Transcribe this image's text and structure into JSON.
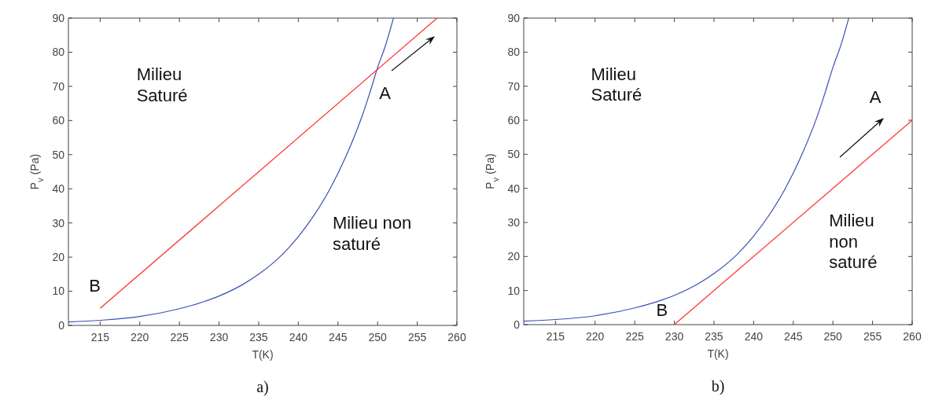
{
  "chart_data": [
    {
      "type": "line",
      "xlabel": "T(K)",
      "ylabel": "P$_{v}$ (Pa)",
      "xlim": [
        211,
        260
      ],
      "ylim": [
        0,
        90
      ],
      "xticks": [
        215,
        220,
        225,
        230,
        235,
        240,
        245,
        250,
        255,
        260
      ],
      "yticks": [
        0,
        10,
        20,
        30,
        40,
        50,
        60,
        70,
        80,
        90
      ],
      "series": [
        {
          "color": "#3b4fb4",
          "x": [
            211,
            215,
            220,
            225,
            228,
            230,
            233,
            235,
            238,
            240,
            242,
            244,
            246,
            248,
            249,
            250,
            251,
            252
          ],
          "values": [
            1.0,
            1.5,
            2.6,
            4.9,
            6.9,
            8.6,
            12,
            15,
            20.8,
            26,
            32.3,
            40,
            49.5,
            61,
            68,
            75.5,
            82,
            90
          ]
        },
        {
          "color": "#ff2a2a",
          "x": [
            215,
            257.5
          ],
          "values": [
            5,
            90
          ]
        }
      ],
      "annotations": [
        "Milieu\nSaturé",
        "Milieu non\nsaturé",
        "A",
        "B",
        "a)"
      ]
    },
    {
      "type": "line",
      "xlabel": "T(K)",
      "ylabel": "P$_{v}$ (Pa)",
      "xlim": [
        211,
        260
      ],
      "ylim": [
        0,
        90
      ],
      "xticks": [
        215,
        220,
        225,
        230,
        235,
        240,
        245,
        250,
        255,
        260
      ],
      "yticks": [
        0,
        10,
        20,
        30,
        40,
        50,
        60,
        70,
        80,
        90
      ],
      "series": [
        {
          "color": "#3b4fb4",
          "x": [
            211,
            215,
            220,
            225,
            228,
            230,
            233,
            235,
            238,
            240,
            242,
            244,
            246,
            248,
            249,
            250,
            251,
            252
          ],
          "values": [
            1.0,
            1.5,
            2.6,
            4.9,
            6.9,
            8.6,
            12,
            15,
            20.8,
            26,
            32.3,
            40,
            49.5,
            61,
            68,
            75.5,
            82,
            90
          ]
        },
        {
          "color": "#ff2a2a",
          "x": [
            230,
            260
          ],
          "values": [
            0,
            60
          ]
        }
      ],
      "annotations": [
        "Milieu\nSaturé",
        "Milieu\nnon\nsaturé",
        "A",
        "B",
        "b)"
      ]
    }
  ]
}
